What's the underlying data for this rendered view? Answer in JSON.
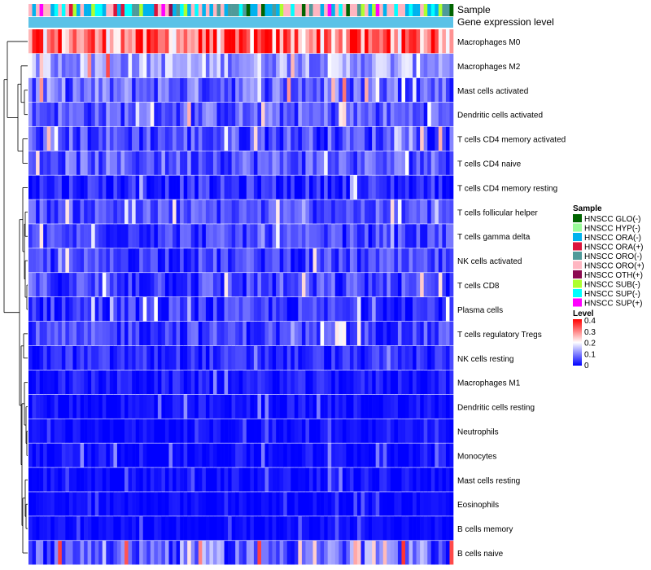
{
  "chart_data": {
    "type": "heatmap",
    "title": "",
    "annotation_rows": [
      "Sample",
      "Gene expression level"
    ],
    "rows": [
      {
        "label": "Macrophages M0",
        "mean": 0.3,
        "spread": 0.12
      },
      {
        "label": "Macrophages M2",
        "mean": 0.13,
        "spread": 0.07
      },
      {
        "label": "Mast cells activated",
        "mean": 0.08,
        "spread": 0.07
      },
      {
        "label": "Dendritic cells activated",
        "mean": 0.07,
        "spread": 0.06
      },
      {
        "label": "T cells CD4 memory activated",
        "mean": 0.06,
        "spread": 0.06
      },
      {
        "label": "T cells CD4 naive",
        "mean": 0.07,
        "spread": 0.06
      },
      {
        "label": "T cells CD4 memory resting",
        "mean": 0.03,
        "spread": 0.05
      },
      {
        "label": "T cells follicular helper",
        "mean": 0.06,
        "spread": 0.05
      },
      {
        "label": "T cells gamma delta",
        "mean": 0.05,
        "spread": 0.05
      },
      {
        "label": "NK cells activated",
        "mean": 0.05,
        "spread": 0.05
      },
      {
        "label": "T cells CD8",
        "mean": 0.05,
        "spread": 0.06
      },
      {
        "label": "Plasma cells",
        "mean": 0.04,
        "spread": 0.05
      },
      {
        "label": "T cells regulatory  Tregs",
        "mean": 0.05,
        "spread": 0.05
      },
      {
        "label": "NK cells resting",
        "mean": 0.03,
        "spread": 0.04
      },
      {
        "label": "Macrophages M1",
        "mean": 0.02,
        "spread": 0.03
      },
      {
        "label": "Dendritic cells resting",
        "mean": 0.01,
        "spread": 0.03
      },
      {
        "label": "Neutrophils",
        "mean": 0.01,
        "spread": 0.02
      },
      {
        "label": "Monocytes",
        "mean": 0.01,
        "spread": 0.03
      },
      {
        "label": "Mast cells resting",
        "mean": 0.01,
        "spread": 0.03
      },
      {
        "label": "Eosinophils",
        "mean": 0.005,
        "spread": 0.02
      },
      {
        "label": "B cells memory",
        "mean": 0.005,
        "spread": 0.02
      },
      {
        "label": "B cells naive",
        "mean": 0.08,
        "spread": 0.08
      }
    ],
    "n_samples": 115,
    "legend_sample": {
      "title": "Sample",
      "entries": [
        {
          "label": "HNSCC GLO(-)",
          "color": "#006400"
        },
        {
          "label": "HNSCC HYP(-)",
          "color": "#98fb98"
        },
        {
          "label": "HNSCC ORA(-)",
          "color": "#00b2ee"
        },
        {
          "label": "HNSCC ORA(+)",
          "color": "#dc143c"
        },
        {
          "label": "HNSCC ORO(-)",
          "color": "#4f9a9a"
        },
        {
          "label": "HNSCC ORO(+)",
          "color": "#ffb6c1"
        },
        {
          "label": "HNSCC OTH(+)",
          "color": "#8b0a50"
        },
        {
          "label": "HNSCC SUB(-)",
          "color": "#adff2f"
        },
        {
          "label": "HNSCC SUP(-)",
          "color": "#00ffff"
        },
        {
          "label": "HNSCC SUP(+)",
          "color": "#ff00ff"
        }
      ]
    },
    "legend_level": {
      "title": "Level",
      "ticks": [
        "0.4",
        "0.3",
        "0.2",
        "0.1",
        "0"
      ],
      "range": [
        0,
        0.4
      ],
      "colors": [
        "#0000ff",
        "#ffffff",
        "#ff0000"
      ]
    },
    "gene_expression_color": "#5bc2e7"
  }
}
